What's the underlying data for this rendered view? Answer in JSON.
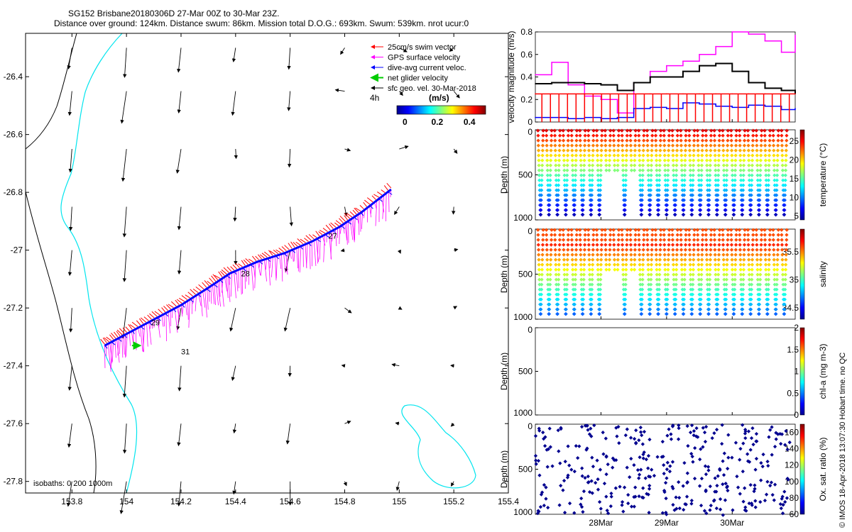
{
  "header": {
    "line1": "SG152 Brisbane20180306D 27-Mar 00Z to 30-Mar 23Z.",
    "line2": "Distance over ground: 124km. Distance swum: 86km. Mission total D.O.G.: 693km. Swum: 539km. nrot ucur:0"
  },
  "footer_note": "© IMOS 18-Apr-2018 13:07:30 Hobart time. no QC",
  "colors": {
    "swim": "#ff0000",
    "gps": "#ff00ff",
    "dive_avg": "#0000ff",
    "net": "#00cc00",
    "geo": "#000000",
    "coast": "#00e5ee"
  },
  "map": {
    "xticks": [
      "153.8",
      "154",
      "154.2",
      "154.4",
      "154.6",
      "154.8",
      "155",
      "155.2",
      "155.4"
    ],
    "xtick_values": [
      153.8,
      154.0,
      154.2,
      154.4,
      154.6,
      154.8,
      155.0,
      155.2,
      155.4
    ],
    "yticks": [
      "-26.4",
      "-26.6",
      "-26.8",
      "-27",
      "-27.2",
      "-27.4",
      "-27.6",
      "-27.8"
    ],
    "ytick_values": [
      -26.4,
      -26.6,
      -26.8,
      -27.0,
      -27.2,
      -27.4,
      -27.6,
      -27.8
    ],
    "xlim": [
      153.63,
      155.4
    ],
    "ylim": [
      -27.84,
      -26.25
    ],
    "legend": [
      {
        "label": "25cm/s swim vector",
        "color": "#ff0000"
      },
      {
        "label": "GPS surface velocity",
        "color": "#ff00ff"
      },
      {
        "label": "dive-avg current veloc.",
        "color": "#0000ff"
      },
      {
        "label": "net glider velocity",
        "color": "#00cc00"
      },
      {
        "label": "sfc geo. vel. 30-Mar-2018",
        "color": "#000000"
      }
    ],
    "legend_interval": "4h",
    "colorbar_title": "(m/s)",
    "colorbar_ticks": [
      "0",
      "0.2",
      "0.4"
    ],
    "colorbar_values": [
      0,
      0.2,
      0.4
    ],
    "colorbar_range": [
      -0.05,
      0.5
    ],
    "day_labels": [
      {
        "label": "27",
        "lon": 154.74,
        "lat": -26.96
      },
      {
        "label": "28",
        "lon": 154.42,
        "lat": -27.09
      },
      {
        "label": "29",
        "lon": 154.09,
        "lat": -27.26
      },
      {
        "label": "31",
        "lon": 154.2,
        "lat": -27.36
      }
    ],
    "isobaths_label": "isobaths: 0   200  1000m",
    "track": [
      [
        153.92,
        -27.33
      ],
      [
        154.0,
        -27.29
      ],
      [
        154.1,
        -27.24
      ],
      [
        154.2,
        -27.19
      ],
      [
        154.3,
        -27.13
      ],
      [
        154.38,
        -27.08
      ],
      [
        154.48,
        -27.04
      ],
      [
        154.58,
        -27.01
      ],
      [
        154.68,
        -26.97
      ],
      [
        154.78,
        -26.92
      ],
      [
        154.86,
        -26.87
      ],
      [
        154.97,
        -26.79
      ]
    ]
  },
  "panels": {
    "xticks": [
      "28Mar",
      "29Mar",
      "30Mar"
    ],
    "xtick_values": [
      1,
      2,
      3
    ],
    "xlim": [
      0,
      3.96
    ],
    "velocity": {
      "ylabel": "velocity magnitude (m/s)",
      "yticks": [
        "0",
        "0.2",
        "0.4",
        "0.6",
        "0.8"
      ],
      "ylim": [
        0,
        0.8
      ]
    },
    "temperature": {
      "ylabel": "Depth (m)",
      "cbar_label": "temperature (°C)",
      "cbar_ticks": [
        "5",
        "10",
        "15",
        "20",
        "25"
      ],
      "cbar_values": [
        5,
        10,
        15,
        20,
        25
      ],
      "cbar_range": [
        4,
        28
      ],
      "yticks": [
        "0",
        "500",
        "1000"
      ]
    },
    "salinity": {
      "ylabel": "Depth (m)",
      "cbar_label": "salinity",
      "cbar_ticks": [
        "34.5",
        "35",
        "35.5"
      ],
      "cbar_values": [
        34.5,
        35,
        35.5
      ],
      "cbar_range": [
        34.3,
        35.9
      ],
      "yticks": [
        "0",
        "500",
        "1000"
      ]
    },
    "chla": {
      "ylabel": "Depth (m)",
      "cbar_label": "chl-a (mg m-3)",
      "cbar_ticks": [
        "0",
        "0.5",
        "1",
        "1.5",
        "2"
      ],
      "cbar_values": [
        0,
        0.5,
        1,
        1.5,
        2
      ],
      "cbar_range": [
        0,
        2
      ],
      "yticks": [
        "0",
        "500",
        "1000"
      ]
    },
    "oxygen": {
      "ylabel": "Depth (m)",
      "cbar_label": "Ox. sat. ratio (%)",
      "cbar_ticks": [
        "60",
        "80",
        "100",
        "120",
        "140",
        "160"
      ],
      "cbar_values": [
        60,
        80,
        100,
        120,
        140,
        160
      ],
      "cbar_range": [
        60,
        170
      ],
      "yticks": [
        "0",
        "500",
        "1000"
      ]
    }
  },
  "chart_data": [
    {
      "type": "line",
      "title": "",
      "xlabel": "",
      "ylabel": "velocity magnitude (m/s)",
      "ylim": [
        0,
        0.8
      ],
      "x": [
        0,
        0.25,
        0.5,
        0.75,
        1,
        1.25,
        1.5,
        1.75,
        2,
        2.25,
        2.5,
        2.75,
        3,
        3.25,
        3.5,
        3.75,
        3.96
      ],
      "series": [
        {
          "color": "#ff00ff",
          "values": [
            0.42,
            0.53,
            0.33,
            0.23,
            0.2,
            0.08,
            0.35,
            0.45,
            0.5,
            0.54,
            0.6,
            0.67,
            0.8,
            0.78,
            0.72,
            0.62,
            0.77
          ]
        },
        {
          "color": "#000000",
          "values": [
            0.34,
            0.35,
            0.35,
            0.34,
            0.33,
            0.28,
            0.35,
            0.4,
            0.4,
            0.45,
            0.5,
            0.52,
            0.45,
            0.35,
            0.3,
            0.28,
            0.25
          ]
        },
        {
          "color": "#ff0000",
          "values": [
            0.25,
            0.25,
            0.25,
            0.25,
            0.25,
            0.25,
            0.25,
            0.25,
            0.25,
            0.25,
            0.25,
            0.25,
            0.25,
            0.25,
            0.25,
            0.25,
            0.25
          ]
        },
        {
          "color": "#0000ff",
          "values": [
            0.04,
            0.04,
            0.03,
            0.04,
            0.03,
            0.04,
            0.12,
            0.13,
            0.12,
            0.17,
            0.16,
            0.14,
            0.13,
            0.15,
            0.14,
            0.11,
            0.12
          ]
        }
      ]
    },
    {
      "type": "scatter",
      "ylabel": "Depth (m)",
      "ylim": [
        0,
        1000
      ],
      "colorbar": "temperature (°C)",
      "profiles": "depth-time sawtooth, warm at surface (~27) cold at depth (~5)"
    },
    {
      "type": "scatter",
      "ylabel": "Depth (m)",
      "ylim": [
        0,
        1000
      ],
      "colorbar": "salinity",
      "profiles": "depth-time sawtooth, salty near 200 m (~35.6) fresher at depth (~34.4)"
    },
    {
      "type": "scatter",
      "ylabel": "Depth (m)",
      "ylim": [
        0,
        1000
      ],
      "colorbar": "chl-a (mg m-3)",
      "profiles": "no data"
    },
    {
      "type": "scatter",
      "ylabel": "Depth (m)",
      "ylim": [
        0,
        1000
      ],
      "colorbar": "Ox. sat. ratio (%)",
      "profiles": "scattered points, ratio ~60"
    }
  ]
}
